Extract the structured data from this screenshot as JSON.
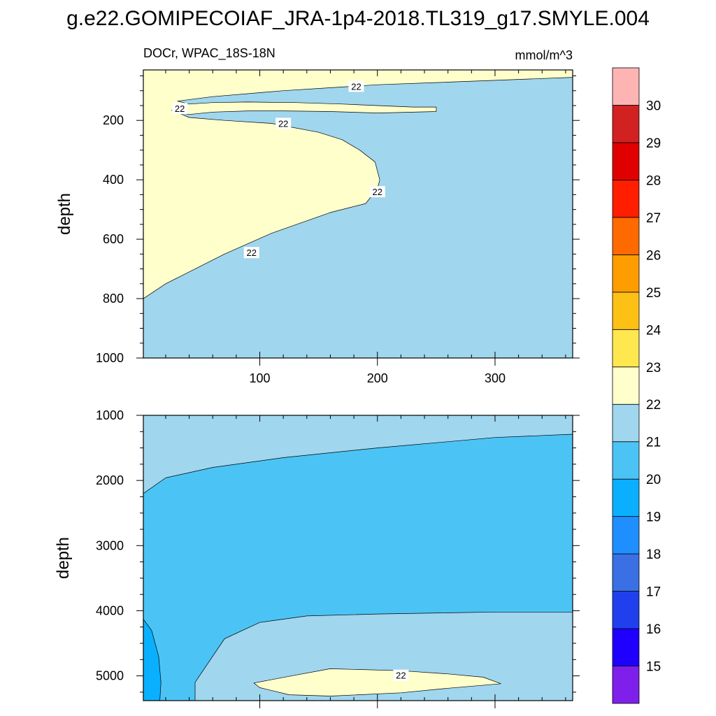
{
  "chart_data": {
    "type": "contour",
    "title": "g.e22.GOMIPECOIAF_JRA-1p4-2018.TL319_g17.SMYLE.004",
    "variable": "DOCr, WPAC_18S-18N",
    "units": "mmol/m^3",
    "colorbar": {
      "levels": [
        15,
        16,
        17,
        18,
        19,
        20,
        21,
        22,
        23,
        24,
        25,
        26,
        27,
        28,
        29,
        30
      ],
      "labels": [
        "15",
        "16",
        "17",
        "18",
        "19",
        "20",
        "21",
        "22",
        "23",
        "24",
        "25",
        "26",
        "27",
        "28",
        "29",
        "30"
      ],
      "colors": [
        "#7f1fec",
        "#1f00ff",
        "#2040ee",
        "#3a70e4",
        "#1f8fff",
        "#0ab0ff",
        "#4bc4f5",
        "#a0d6ee",
        "#ffffcc",
        "#ffe750",
        "#fdc015",
        "#fd9d00",
        "#ff6a00",
        "#ff1f00",
        "#e10000",
        "#d22121",
        "#ffb4b4"
      ]
    },
    "panels": [
      {
        "name": "upper",
        "xlabel": "",
        "ylabel": "depth",
        "xlim": [
          1,
          366
        ],
        "ylim": [
          1000,
          30
        ],
        "xticks": [
          100,
          200,
          300
        ],
        "xtick_labels": [
          "100",
          "200",
          "300"
        ],
        "yticks": [
          200,
          400,
          600,
          800,
          1000
        ],
        "ytick_labels": [
          "200",
          "400",
          "600",
          "800",
          "1000"
        ],
        "contour_labels": [
          {
            "text": "22",
            "x": 182,
            "depth": 85
          },
          {
            "text": "22",
            "x": 32,
            "depth": 160
          },
          {
            "text": "22",
            "x": 120,
            "depth": 210
          },
          {
            "text": "22",
            "x": 200,
            "depth": 440
          },
          {
            "text": "22",
            "x": 93,
            "depth": 645
          }
        ],
        "regions": [
          {
            "level_range": "21-22",
            "outline": [
              [
                1,
                30
              ],
              [
                366,
                30
              ],
              [
                366,
                1000
              ],
              [
                1,
                1000
              ]
            ]
          },
          {
            "level_range": "22-23",
            "outline": [
              [
                1,
                30
              ],
              [
                366,
                30
              ],
              [
                366,
                55
              ],
              [
                300,
                65
              ],
              [
                200,
                80
              ],
              [
                120,
                100
              ],
              [
                60,
                120
              ],
              [
                30,
                135
              ],
              [
                40,
                145
              ],
              [
                60,
                140
              ],
              [
                90,
                138
              ],
              [
                130,
                140
              ],
              [
                170,
                145
              ],
              [
                200,
                150
              ],
              [
                230,
                155
              ],
              [
                250,
                155
              ],
              [
                250,
                170
              ],
              [
                200,
                175
              ],
              [
                160,
                170
              ],
              [
                120,
                168
              ],
              [
                90,
                168
              ],
              [
                60,
                172
              ],
              [
                40,
                180
              ],
              [
                30,
                175
              ],
              [
                25,
                165
              ],
              [
                40,
                190
              ],
              [
                70,
                200
              ],
              [
                110,
                210
              ],
              [
                150,
                240
              ],
              [
                170,
                265
              ],
              [
                185,
                300
              ],
              [
                198,
                340
              ],
              [
                202,
                400
              ],
              [
                200,
                430
              ],
              [
                190,
                480
              ],
              [
                160,
                510
              ],
              [
                110,
                580
              ],
              [
                70,
                650
              ],
              [
                20,
                750
              ],
              [
                1,
                800
              ]
            ]
          }
        ]
      },
      {
        "name": "lower",
        "xlabel": "",
        "ylabel": "depth",
        "xlim": [
          1,
          366
        ],
        "ylim": [
          5380,
          1000
        ],
        "xticks": [
          100,
          200,
          300
        ],
        "yticks": [
          1000,
          2000,
          3000,
          4000,
          5000
        ],
        "ytick_labels": [
          "1000",
          "2000",
          "3000",
          "4000",
          "5000"
        ],
        "contour_labels": [
          {
            "text": "22",
            "x": 220,
            "depth": 4990
          }
        ],
        "regions": [
          {
            "level_range": "21-22",
            "outline": [
              [
                1,
                1000
              ],
              [
                366,
                1000
              ],
              [
                366,
                5380
              ],
              [
                1,
                5380
              ]
            ]
          },
          {
            "level_range": "20-21",
            "outline": [
              [
                1,
                2200
              ],
              [
                20,
                1960
              ],
              [
                60,
                1800
              ],
              [
                120,
                1650
              ],
              [
                200,
                1500
              ],
              [
                300,
                1340
              ],
              [
                366,
                1290
              ],
              [
                366,
                4020
              ],
              [
                300,
                4020
              ],
              [
                200,
                4050
              ],
              [
                140,
                4080
              ],
              [
                100,
                4180
              ],
              [
                70,
                4430
              ],
              [
                45,
                5100
              ],
              [
                45,
                5380
              ],
              [
                1,
                5380
              ]
            ]
          },
          {
            "level_range": "19-20",
            "outline": [
              [
                1,
                4130
              ],
              [
                8,
                4300
              ],
              [
                14,
                4700
              ],
              [
                16,
                5100
              ],
              [
                15,
                5380
              ],
              [
                1,
                5380
              ]
            ]
          },
          {
            "level_range": "22-23",
            "outline": [
              [
                95,
                5110
              ],
              [
                130,
                4990
              ],
              [
                160,
                4890
              ],
              [
                220,
                4920
              ],
              [
                260,
                4970
              ],
              [
                290,
                5020
              ],
              [
                305,
                5120
              ],
              [
                260,
                5190
              ],
              [
                220,
                5260
              ],
              [
                160,
                5310
              ],
              [
                125,
                5290
              ],
              [
                100,
                5180
              ]
            ]
          }
        ]
      }
    ]
  }
}
